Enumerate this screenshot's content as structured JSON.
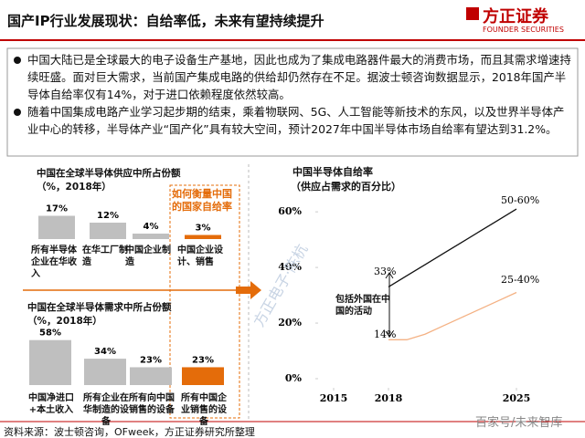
{
  "header": {
    "title": "国产IP行业发展现状：自给率低，未来有望持续提升",
    "logo": "方正证券",
    "logo_sub": "FOUNDER SECURITIES"
  },
  "bullets": [
    "中国大陆已是全球最大的电子设备生产基地，因此也成为了集成电路器件最大的消费市场，而且其需求增速持续旺盛。面对巨大需求，当前国产集成电路的供给却仍然存在不足。据波士顿咨询数据显示，2018年国产半导体自给率仅有14%，对于进口依赖程度依然较高。",
    "随着中国集成电路产业学习起步期的结束，乘着物联网、5G、人工智能等新技术的东风，以及世界半导体产业中心的转移，半导体产业“国产化”具有较大空间，预计2027年中国半导体市场自给率有望达到31.2%。"
  ],
  "callout": "如何衡量中国的国家自给率",
  "chart_data": [
    {
      "type": "bar",
      "title": "中国在全球半导体供应中所占份额（%，2018年）",
      "categories": [
        "所有半导体企业在华收入",
        "在华工厂制造",
        "中国企业制造",
        "中国企业设计、销售"
      ],
      "values": [
        17,
        12,
        4,
        3
      ],
      "value_labels": [
        "17%",
        "12%",
        "4%",
        "3%"
      ],
      "colors": [
        "#bfbfbf",
        "#bfbfbf",
        "#bfbfbf",
        "#e46c0a"
      ]
    },
    {
      "type": "bar",
      "title": "中国在全球半导体需求中所占份额（%，2018年）",
      "categories": [
        "中国净进口+本土收入",
        "所有企业在华制造的设备",
        "所有向中国销售的设备",
        "所有中国企业销售的设备"
      ],
      "values": [
        58,
        34,
        23,
        23
      ],
      "value_labels": [
        "58%",
        "34%",
        "23%",
        "23%"
      ],
      "colors": [
        "#bfbfbf",
        "#bfbfbf",
        "#bfbfbf",
        "#e46c0a"
      ]
    },
    {
      "type": "line",
      "title": "中国半导体自给率",
      "subtitle": "（供应占需求的百分比）",
      "x": [
        2018,
        2019,
        2020,
        2021,
        2022,
        2023,
        2024,
        2025
      ],
      "series": [
        {
          "name": "包括外国在中国的活动",
          "color": "#111111",
          "values": [
            33,
            37,
            41,
            45,
            49,
            53,
            57,
            61
          ]
        },
        {
          "name": null,
          "color": "#f4b183",
          "values": [
            14,
            14,
            16,
            19,
            22,
            25,
            28,
            31
          ]
        }
      ],
      "xlim": [
        2014.25,
        2026.25
      ],
      "xticks": [
        2015,
        2018,
        2025
      ],
      "ylim": [
        0,
        63
      ],
      "yticks": [
        {
          "value": 0,
          "label": "0%"
        },
        {
          "value": 20,
          "label": "20%"
        },
        {
          "value": 40,
          "label": "40%"
        },
        {
          "value": 60,
          "label": "60%"
        }
      ],
      "annotations": [
        "33%",
        "14%",
        "50-60%",
        "25-40%"
      ]
    }
  ],
  "source": "资料来源：波士顿咨询，OFweek，方正证券研究所整理",
  "watermark": "方正电子·陈杭",
  "footer_mark": "百家号/未来智库"
}
